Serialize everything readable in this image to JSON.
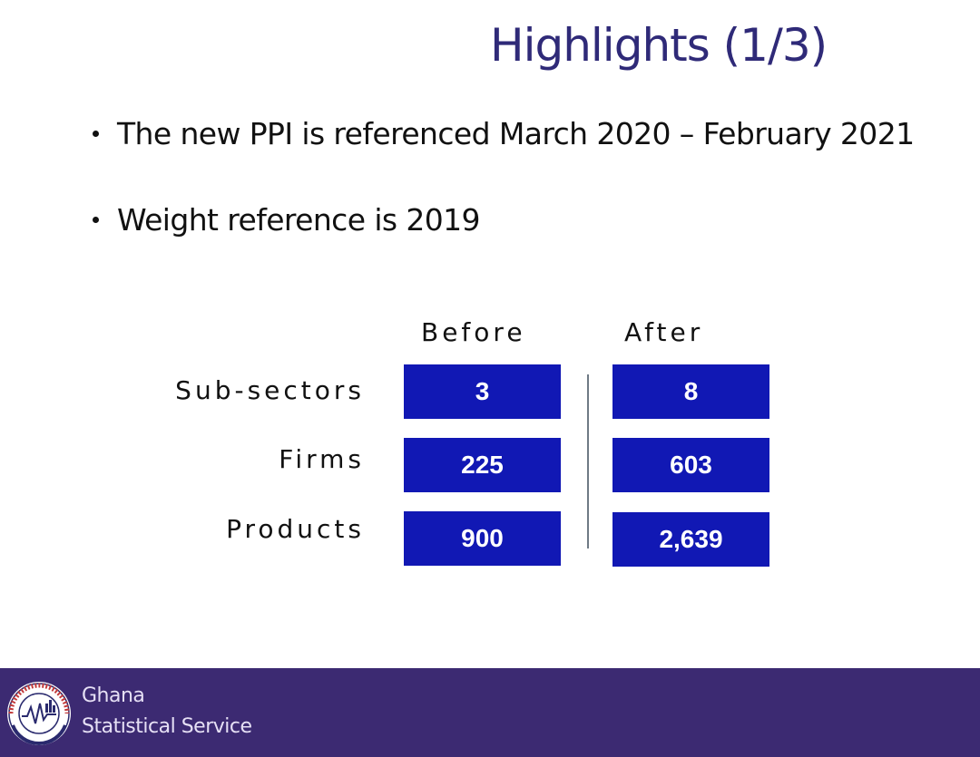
{
  "slide": {
    "title": "Highlights (1/3)",
    "bullets": [
      "The new PPI is referenced March 2020 – February 2021",
      "Weight reference is 2019"
    ]
  },
  "table": {
    "columns": [
      "Before",
      "After"
    ],
    "rows": [
      {
        "label": "Sub-sectors",
        "before": "3",
        "after": "8"
      },
      {
        "label": "Firms",
        "before": "225",
        "after": "603"
      },
      {
        "label": "Products",
        "before": "900",
        "after": "2,639"
      }
    ],
    "cell_color": "#1118b4"
  },
  "footer": {
    "org_line1": "Ghana",
    "org_line2": "Statistical Service",
    "logo_icon": "ghana-statistical-service-seal",
    "background": "#3c2a72"
  },
  "colors": {
    "title": "#2f2a78"
  }
}
